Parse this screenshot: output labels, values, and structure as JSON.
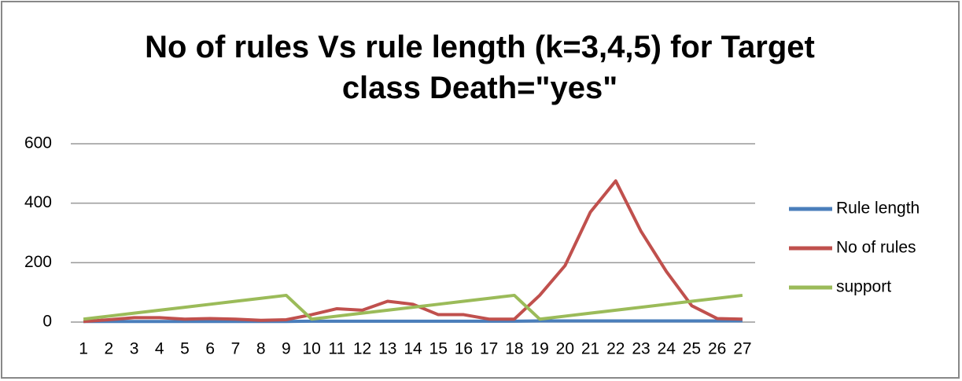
{
  "chart_data": {
    "type": "line",
    "title": "No of rules Vs rule length (k=3,4,5) for Target class Death=\"yes\"",
    "categories": [
      "1",
      "2",
      "3",
      "4",
      "5",
      "6",
      "7",
      "8",
      "9",
      "10",
      "11",
      "12",
      "13",
      "14",
      "15",
      "16",
      "17",
      "18",
      "19",
      "20",
      "21",
      "22",
      "23",
      "24",
      "25",
      "26",
      "27"
    ],
    "series": [
      {
        "name": "Rule length",
        "color": "#4a7ebb",
        "values": [
          2,
          2,
          2,
          2,
          2,
          2,
          2,
          2,
          2,
          3,
          3,
          3,
          3,
          3,
          3,
          3,
          3,
          3,
          4,
          4,
          4,
          4,
          4,
          4,
          4,
          4,
          4
        ]
      },
      {
        "name": "No of rules",
        "color": "#c0504d",
        "values": [
          2,
          8,
          15,
          15,
          10,
          12,
          10,
          6,
          8,
          25,
          45,
          40,
          70,
          60,
          25,
          25,
          10,
          10,
          90,
          190,
          370,
          475,
          305,
          170,
          55,
          12,
          10
        ]
      },
      {
        "name": "support",
        "color": "#9bbb59",
        "values": [
          10,
          20,
          30,
          40,
          50,
          60,
          70,
          80,
          90,
          10,
          20,
          30,
          40,
          50,
          60,
          70,
          80,
          90,
          10,
          20,
          30,
          40,
          50,
          60,
          70,
          80,
          90
        ]
      }
    ],
    "ylim": [
      0,
      600
    ],
    "yticks": [
      0,
      200,
      400,
      600
    ],
    "grid": true,
    "legend": "right"
  }
}
